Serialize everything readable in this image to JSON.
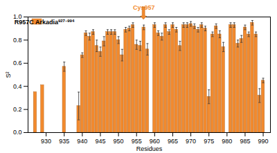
{
  "chart_data": {
    "type": "bar",
    "x_label": "Residues",
    "y_label": "S²",
    "x": [
      927,
      929,
      935,
      939,
      940,
      941,
      942,
      943,
      944,
      945,
      946,
      947,
      948,
      949,
      950,
      951,
      952,
      953,
      954,
      955,
      956,
      957,
      958,
      960,
      961,
      962,
      963,
      964,
      965,
      966,
      967,
      968,
      969,
      970,
      971,
      972,
      973,
      974,
      975,
      976,
      977,
      978,
      979,
      981,
      982,
      983,
      984,
      985,
      986,
      987,
      988,
      989,
      990
    ],
    "series": [
      {
        "name": "R957C Arkadia927–994",
        "color": "#f28a2e",
        "values": [
          0.35,
          0.41,
          0.57,
          0.23,
          0.67,
          0.86,
          0.83,
          0.87,
          0.75,
          0.7,
          0.79,
          0.87,
          0.87,
          0.87,
          0.8,
          0.67,
          0.89,
          0.9,
          0.93,
          0.76,
          0.75,
          0.91,
          0.72,
          0.93,
          0.86,
          0.83,
          0.93,
          0.87,
          0.93,
          0.89,
          0.75,
          0.93,
          0.93,
          0.94,
          0.92,
          0.89,
          0.93,
          0.9,
          0.31,
          0.85,
          0.92,
          0.85,
          0.74,
          0.93,
          0.93,
          0.77,
          0.81,
          0.91,
          0.85,
          0.95,
          0.85,
          0.32,
          0.45
        ],
        "errors": [
          0,
          0,
          0.04,
          0.12,
          0.02,
          0.02,
          0.03,
          0.02,
          0.05,
          0.04,
          0.04,
          0.02,
          0.02,
          0.02,
          0.03,
          0.05,
          0.02,
          0.02,
          0.02,
          0.04,
          0.04,
          0.02,
          0.05,
          0.02,
          0.02,
          0.03,
          0.02,
          0.02,
          0.02,
          0.02,
          0.04,
          0.02,
          0.02,
          0.02,
          0.02,
          0.02,
          0.02,
          0.02,
          0.06,
          0.02,
          0.02,
          0.03,
          0.04,
          0.02,
          0.02,
          0.03,
          0.03,
          0.02,
          0.02,
          0.02,
          0.02,
          0.06,
          0.02
        ]
      }
    ],
    "xlim": [
      925,
      992
    ],
    "xticks": [
      930,
      935,
      940,
      945,
      950,
      955,
      960,
      965,
      970,
      975,
      980,
      985,
      990
    ],
    "ylim": [
      0,
      1
    ],
    "yticks": [
      {
        "value": 0,
        "label": "0.0"
      },
      0.2,
      0.4,
      0.6,
      0.8,
      {
        "value": 1,
        "label": "1.0"
      }
    ],
    "legend": "top-left",
    "annotations": [
      {
        "text": "Cys957",
        "x": 957,
        "color": "#f28a2e"
      }
    ]
  }
}
